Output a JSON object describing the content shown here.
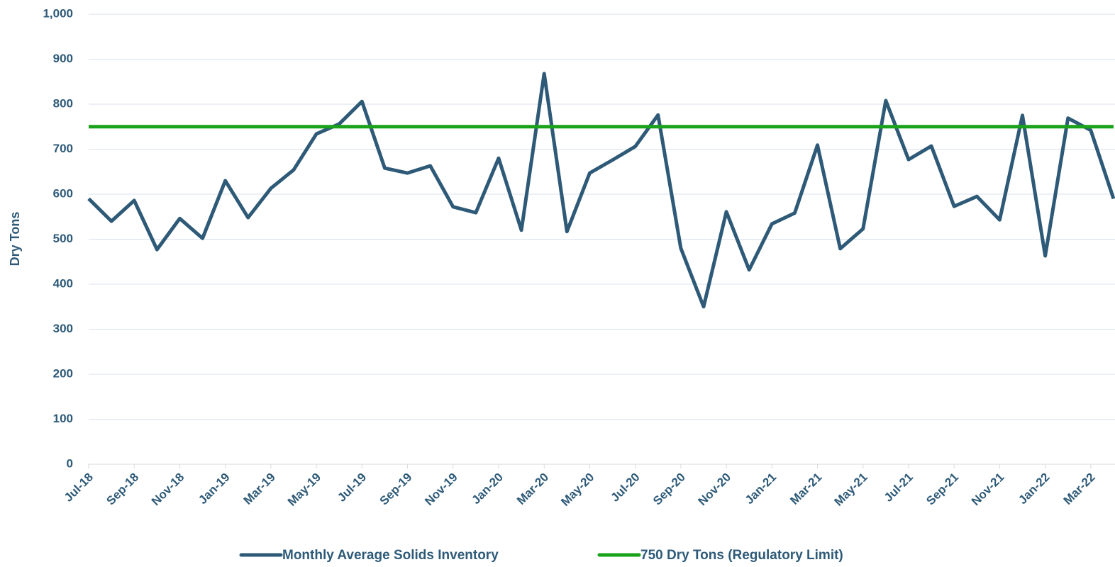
{
  "chart_data": {
    "type": "line",
    "y_label": "Dry Tons",
    "categories": [
      "Jul-18",
      null,
      "Sep-18",
      null,
      "Nov-18",
      null,
      "Jan-19",
      null,
      "Mar-19",
      null,
      "May-19",
      null,
      "Jul-19",
      null,
      "Sep-19",
      null,
      "Nov-19",
      null,
      "Jan-20",
      null,
      "Mar-20",
      null,
      "May-20",
      null,
      "Jul-20",
      null,
      "Sep-20",
      null,
      "Nov-20",
      null,
      "Jan-21",
      null,
      "Mar-21",
      null,
      "May-21",
      null,
      "Jul-21",
      null,
      "Sep-21",
      null,
      "Nov-21",
      null,
      "Jan-22",
      null,
      "Mar-22",
      null
    ],
    "series": [
      {
        "name": "Monthly Average Solids Inventory",
        "color": "#2e5a78",
        "values": [
          590,
          540,
          586,
          477,
          546,
          502,
          630,
          548,
          613,
          654,
          734,
          756,
          806,
          658,
          647,
          663,
          572,
          559,
          680,
          520,
          868,
          517,
          647,
          676,
          706,
          776,
          480,
          350,
          561,
          432,
          534,
          558,
          709,
          479,
          523,
          808,
          677,
          707,
          573,
          595,
          543,
          775,
          463,
          769,
          742,
          590
        ]
      },
      {
        "name": "750 Dry Tons (Regulatory Limit)",
        "color": "#1aa31a",
        "values": [
          750,
          750,
          750,
          750,
          750,
          750,
          750,
          750,
          750,
          750,
          750,
          750,
          750,
          750,
          750,
          750,
          750,
          750,
          750,
          750,
          750,
          750,
          750,
          750,
          750,
          750,
          750,
          750,
          750,
          750,
          750,
          750,
          750,
          750,
          750,
          750,
          750,
          750,
          750,
          750,
          750,
          750,
          750,
          750,
          750,
          750
        ]
      }
    ],
    "ylim": [
      0,
      1000
    ],
    "yticks": [
      0,
      100,
      200,
      300,
      400,
      500,
      600,
      700,
      800,
      900,
      {
        "value": 1000,
        "label": "1,000"
      }
    ],
    "grid": true,
    "legend": "bottom"
  }
}
